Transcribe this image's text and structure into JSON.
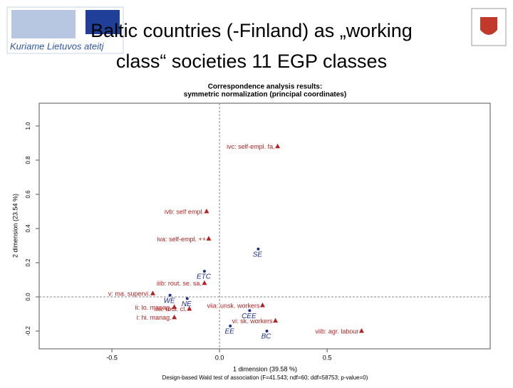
{
  "slide_title": [
    "Baltic countries (-Finland) as „working",
    "class“ societies  11 EGP classes"
  ],
  "logo_text": "Kuriame Lietuvos ateitį",
  "chart_data": {
    "type": "scatter",
    "title": [
      "Correspondence analysis results:",
      "symmetric normalization (principal coordinates)"
    ],
    "x_label": "1 dimension (39.58 %)",
    "y_label": "2 dimension (23.54 %)",
    "note": "Design-based Wald test of association (F=41.543; ndf=60; ddf=58753; p-value=0)",
    "xlim": [
      -0.838,
      1.258
    ],
    "ylim": [
      -0.304,
      1.133
    ],
    "xticks": [
      {
        "value": -0.5,
        "label": "-0.5"
      },
      {
        "value": 0,
        "label": "0.0"
      },
      {
        "value": 0.5,
        "label": "0.5"
      }
    ],
    "yticks": [
      {
        "value": -0.2,
        "label": "-0.2"
      },
      {
        "value": 0,
        "label": "0.0"
      },
      {
        "value": 0.2,
        "label": "0.2"
      },
      {
        "value": 0.4,
        "label": "0.4"
      },
      {
        "value": 0.6,
        "label": "0.6"
      },
      {
        "value": 0.8,
        "label": "0.8"
      },
      {
        "value": 1,
        "label": "1.0"
      }
    ],
    "reference_lines": {
      "x": 0,
      "y": 0,
      "color": "#888888"
    },
    "series": [
      {
        "marker": "triangle",
        "color": "#b22222",
        "labels": [
          "ivc: self-empl. fa.",
          "ivb: self empl.",
          "iva: self-empl. ++",
          "iiib: rout. se. sa.",
          "v: ma. supervi.",
          "ii: lo. manag.",
          "i: hi. manag.",
          "iiia: rout. cl.",
          "viia: unsk. workers",
          "vi: sk. workers",
          "viib: agr. labour"
        ],
        "x": [
          0.27,
          -0.06,
          -0.05,
          -0.07,
          -0.31,
          -0.21,
          -0.21,
          -0.14,
          0.2,
          0.26,
          0.66
        ],
        "values": [
          0.88,
          0.5,
          0.34,
          0.08,
          0.02,
          -0.06,
          -0.12,
          -0.07,
          -0.05,
          -0.14,
          -0.2
        ]
      },
      {
        "marker": "dot",
        "color": "#1f2f8f",
        "labels": [
          "SE",
          "ETC",
          "WE",
          "NE",
          "CEE",
          "EE",
          "BC"
        ],
        "x": [
          0.18,
          -0.07,
          -0.23,
          -0.15,
          0.14,
          0.05,
          0.22
        ],
        "values": [
          0.28,
          0.15,
          0.01,
          -0.01,
          -0.08,
          -0.17,
          -0.2
        ]
      }
    ]
  }
}
